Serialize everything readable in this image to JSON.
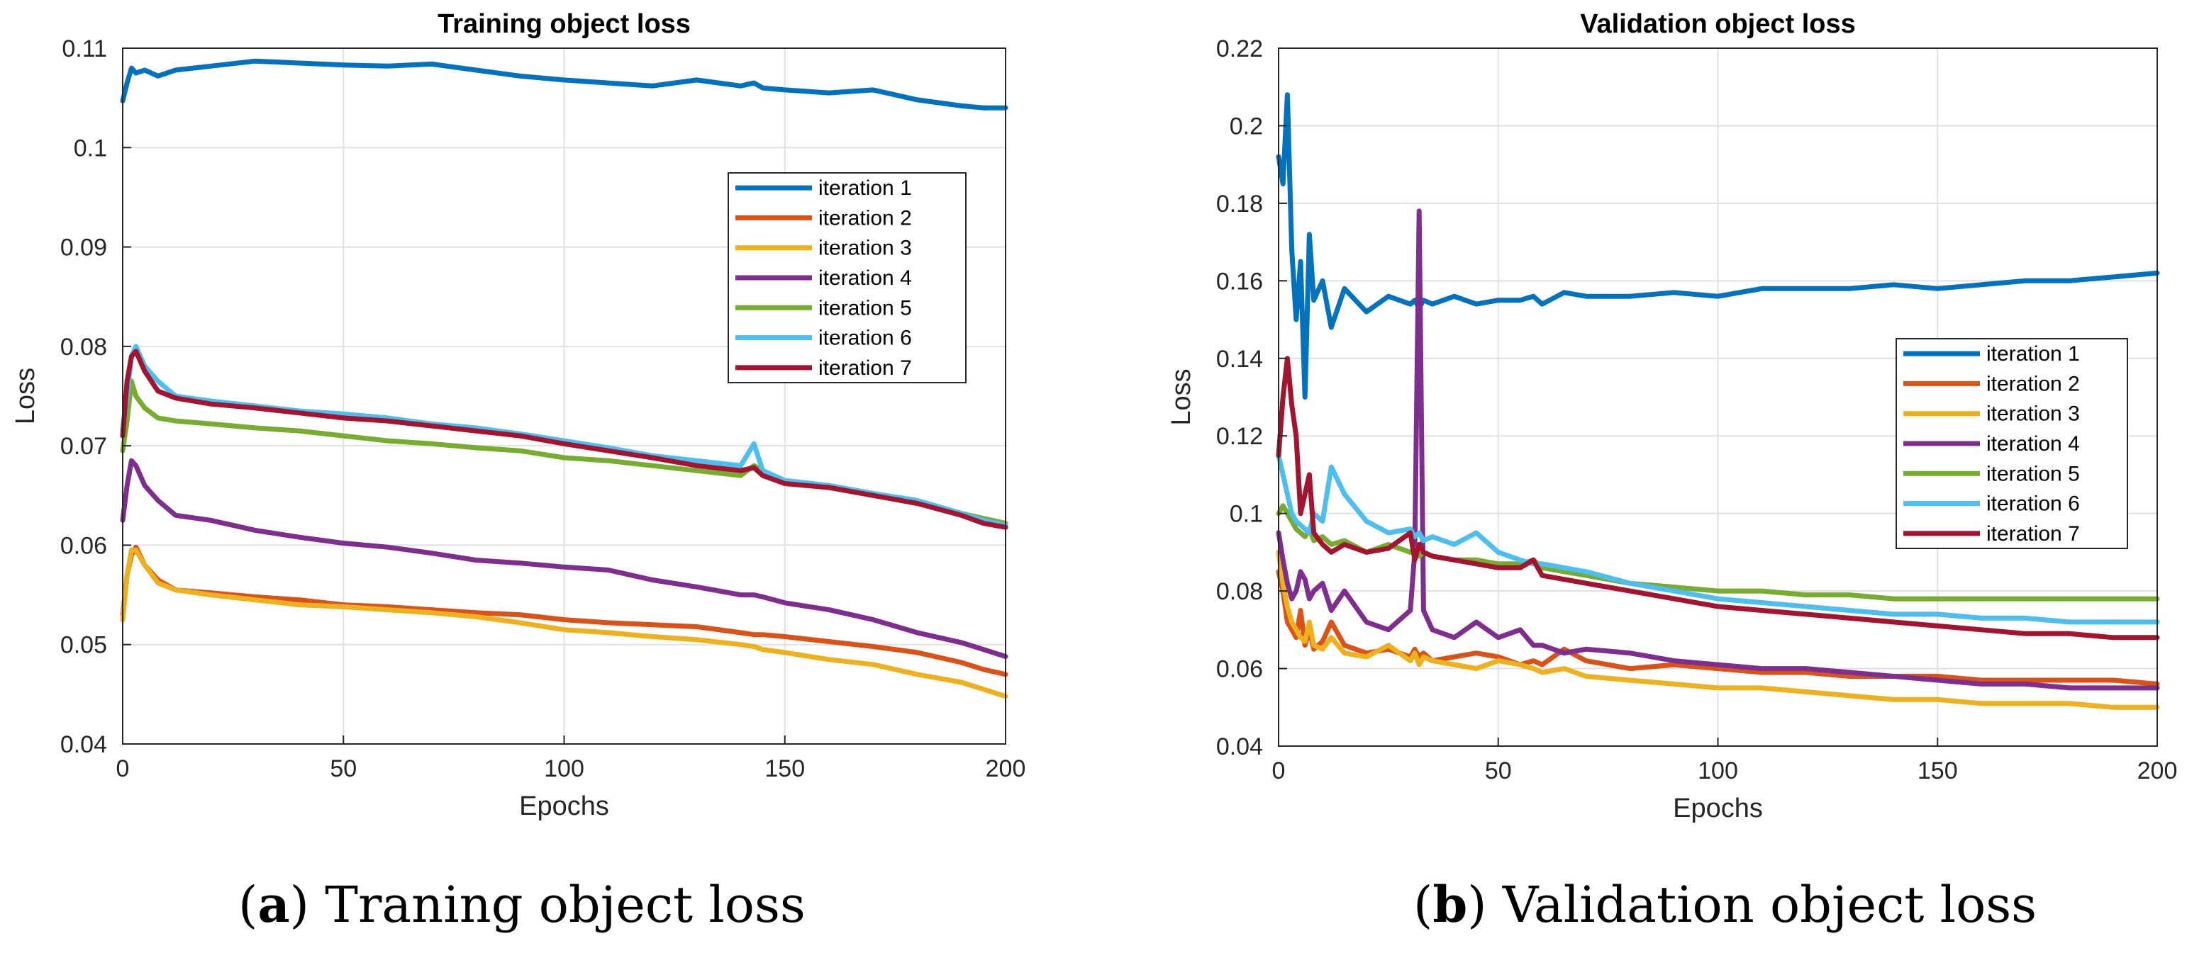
{
  "colors": {
    "series": [
      "#0072bd",
      "#d95319",
      "#edb120",
      "#7e2f8e",
      "#77ac30",
      "#4dbeee",
      "#a2142f"
    ],
    "grid": "#e1e1e1",
    "axis": "#262626"
  },
  "captions": [
    {
      "letter": "a",
      "open": "(",
      "close": ")",
      "text": "Traning object loss"
    },
    {
      "letter": "b",
      "open": "(",
      "close": ")",
      "text": "Validation object loss"
    }
  ],
  "chart_data": [
    {
      "type": "line",
      "title": "Training object loss",
      "xlabel": "Epochs",
      "ylabel": "Loss",
      "xlim": [
        0,
        200
      ],
      "ylim": [
        0.04,
        0.11
      ],
      "xticks": [
        0,
        50,
        100,
        150,
        200
      ],
      "yticks": [
        0.04,
        0.05,
        0.06,
        0.07,
        0.08,
        0.09,
        0.1,
        0.11
      ],
      "ytick_labels": [
        "0.04",
        "0.05",
        "0.06",
        "0.07",
        "0.08",
        "0.09",
        "0.1",
        "0.11"
      ],
      "grid": true,
      "legend_position": "top-right",
      "x": [
        0,
        1,
        2,
        3,
        5,
        8,
        12,
        20,
        30,
        40,
        50,
        60,
        70,
        80,
        90,
        100,
        110,
        120,
        130,
        140,
        143,
        145,
        150,
        160,
        170,
        180,
        190,
        195,
        200
      ],
      "series": [
        {
          "name": "iteration 1",
          "values": [
            0.1047,
            0.1065,
            0.108,
            0.1075,
            0.1078,
            0.1072,
            0.1078,
            0.1082,
            0.1087,
            0.1085,
            0.1083,
            0.1082,
            0.1084,
            0.1078,
            0.1072,
            0.1068,
            0.1065,
            0.1062,
            0.1068,
            0.1062,
            0.1065,
            0.106,
            0.1058,
            0.1055,
            0.1058,
            0.1048,
            0.1042,
            0.104,
            0.104
          ]
        },
        {
          "name": "iteration 2",
          "values": [
            0.053,
            0.057,
            0.059,
            0.0598,
            0.058,
            0.0565,
            0.0555,
            0.0552,
            0.0548,
            0.0545,
            0.054,
            0.0538,
            0.0535,
            0.0532,
            0.053,
            0.0525,
            0.0522,
            0.052,
            0.0518,
            0.0512,
            0.051,
            0.051,
            0.0508,
            0.0503,
            0.0498,
            0.0492,
            0.0482,
            0.0475,
            0.047
          ]
        },
        {
          "name": "iteration 3",
          "values": [
            0.0525,
            0.057,
            0.0595,
            0.0595,
            0.058,
            0.0562,
            0.0555,
            0.055,
            0.0545,
            0.054,
            0.0538,
            0.0535,
            0.0532,
            0.0528,
            0.0522,
            0.0515,
            0.0512,
            0.0508,
            0.0505,
            0.05,
            0.0498,
            0.0495,
            0.0492,
            0.0485,
            0.048,
            0.047,
            0.0462,
            0.0455,
            0.0448
          ]
        },
        {
          "name": "iteration 4",
          "values": [
            0.0625,
            0.066,
            0.0685,
            0.068,
            0.066,
            0.0645,
            0.063,
            0.0625,
            0.0615,
            0.0608,
            0.0602,
            0.0598,
            0.0592,
            0.0585,
            0.0582,
            0.0578,
            0.0575,
            0.0565,
            0.0558,
            0.055,
            0.055,
            0.0548,
            0.0542,
            0.0535,
            0.0525,
            0.0512,
            0.0502,
            0.0495,
            0.0488
          ]
        },
        {
          "name": "iteration 5",
          "values": [
            0.0695,
            0.0725,
            0.0765,
            0.075,
            0.0738,
            0.0728,
            0.0725,
            0.0722,
            0.0718,
            0.0715,
            0.071,
            0.0705,
            0.0702,
            0.0698,
            0.0695,
            0.0688,
            0.0685,
            0.068,
            0.0675,
            0.067,
            0.068,
            0.0675,
            0.0665,
            0.066,
            0.0652,
            0.0642,
            0.0632,
            0.0627,
            0.0622
          ]
        },
        {
          "name": "iteration 6",
          "values": [
            0.0715,
            0.075,
            0.079,
            0.08,
            0.078,
            0.0765,
            0.075,
            0.0745,
            0.074,
            0.0735,
            0.0732,
            0.0728,
            0.0722,
            0.0718,
            0.0712,
            0.0705,
            0.0698,
            0.069,
            0.0685,
            0.068,
            0.0702,
            0.0675,
            0.0665,
            0.066,
            0.0652,
            0.0645,
            0.0632,
            0.0625,
            0.062
          ]
        },
        {
          "name": "iteration 7",
          "values": [
            0.071,
            0.0765,
            0.079,
            0.0795,
            0.0775,
            0.0755,
            0.0748,
            0.0742,
            0.0738,
            0.0733,
            0.0728,
            0.0725,
            0.072,
            0.0715,
            0.071,
            0.0702,
            0.0695,
            0.0688,
            0.068,
            0.0675,
            0.0678,
            0.067,
            0.0662,
            0.0658,
            0.065,
            0.0642,
            0.063,
            0.0622,
            0.0618
          ]
        }
      ]
    },
    {
      "type": "line",
      "title": "Validation object loss",
      "xlabel": "Epochs",
      "ylabel": "Loss",
      "xlim": [
        0,
        200
      ],
      "ylim": [
        0.04,
        0.22
      ],
      "xticks": [
        0,
        50,
        100,
        150,
        200
      ],
      "yticks": [
        0.04,
        0.06,
        0.08,
        0.1,
        0.12,
        0.14,
        0.16,
        0.18,
        0.2,
        0.22
      ],
      "ytick_labels": [
        "0.04",
        "0.06",
        "0.08",
        "0.1",
        "0.12",
        "0.14",
        "0.16",
        "0.18",
        "0.2",
        "0.22"
      ],
      "grid": true,
      "legend_position": "right",
      "x": [
        0,
        1,
        2,
        3,
        4,
        5,
        6,
        7,
        8,
        10,
        12,
        15,
        20,
        25,
        30,
        31,
        32,
        33,
        35,
        40,
        45,
        50,
        55,
        58,
        60,
        65,
        70,
        80,
        90,
        100,
        110,
        120,
        130,
        140,
        150,
        160,
        170,
        180,
        190,
        200
      ],
      "series": [
        {
          "name": "iteration 1",
          "values": [
            0.192,
            0.185,
            0.208,
            0.168,
            0.15,
            0.165,
            0.13,
            0.172,
            0.155,
            0.16,
            0.148,
            0.158,
            0.152,
            0.156,
            0.154,
            0.155,
            0.153,
            0.155,
            0.154,
            0.156,
            0.154,
            0.155,
            0.155,
            0.156,
            0.154,
            0.157,
            0.156,
            0.156,
            0.157,
            0.156,
            0.158,
            0.158,
            0.158,
            0.159,
            0.158,
            0.159,
            0.16,
            0.16,
            0.161,
            0.162
          ]
        },
        {
          "name": "iteration 2",
          "values": [
            0.085,
            0.08,
            0.072,
            0.07,
            0.068,
            0.075,
            0.066,
            0.07,
            0.065,
            0.067,
            0.072,
            0.066,
            0.064,
            0.065,
            0.063,
            0.065,
            0.063,
            0.064,
            0.062,
            0.063,
            0.064,
            0.063,
            0.061,
            0.062,
            0.061,
            0.065,
            0.062,
            0.06,
            0.061,
            0.06,
            0.059,
            0.059,
            0.058,
            0.058,
            0.058,
            0.057,
            0.057,
            0.057,
            0.057,
            0.056
          ]
        },
        {
          "name": "iteration 3",
          "values": [
            0.09,
            0.082,
            0.076,
            0.072,
            0.07,
            0.068,
            0.067,
            0.072,
            0.066,
            0.065,
            0.068,
            0.064,
            0.063,
            0.066,
            0.062,
            0.064,
            0.061,
            0.063,
            0.062,
            0.061,
            0.06,
            0.062,
            0.061,
            0.06,
            0.059,
            0.06,
            0.058,
            0.057,
            0.056,
            0.055,
            0.055,
            0.054,
            0.053,
            0.052,
            0.052,
            0.051,
            0.051,
            0.051,
            0.05,
            0.05
          ]
        },
        {
          "name": "iteration 4",
          "values": [
            0.095,
            0.088,
            0.082,
            0.078,
            0.08,
            0.085,
            0.083,
            0.078,
            0.08,
            0.082,
            0.075,
            0.08,
            0.072,
            0.07,
            0.075,
            0.09,
            0.178,
            0.075,
            0.07,
            0.068,
            0.072,
            0.068,
            0.07,
            0.066,
            0.066,
            0.064,
            0.065,
            0.064,
            0.062,
            0.061,
            0.06,
            0.06,
            0.059,
            0.058,
            0.057,
            0.056,
            0.056,
            0.055,
            0.055,
            0.055
          ]
        },
        {
          "name": "iteration 5",
          "values": [
            0.1,
            0.102,
            0.1,
            0.098,
            0.096,
            0.095,
            0.094,
            0.096,
            0.093,
            0.094,
            0.092,
            0.093,
            0.09,
            0.092,
            0.09,
            0.091,
            0.089,
            0.09,
            0.089,
            0.088,
            0.088,
            0.087,
            0.087,
            0.088,
            0.086,
            0.085,
            0.084,
            0.082,
            0.081,
            0.08,
            0.08,
            0.079,
            0.079,
            0.078,
            0.078,
            0.078,
            0.078,
            0.078,
            0.078,
            0.078
          ]
        },
        {
          "name": "iteration 6",
          "values": [
            0.115,
            0.11,
            0.105,
            0.1,
            0.098,
            0.097,
            0.096,
            0.095,
            0.1,
            0.098,
            0.112,
            0.105,
            0.098,
            0.095,
            0.096,
            0.094,
            0.095,
            0.093,
            0.094,
            0.092,
            0.095,
            0.09,
            0.088,
            0.087,
            0.087,
            0.086,
            0.085,
            0.082,
            0.08,
            0.078,
            0.077,
            0.076,
            0.075,
            0.074,
            0.074,
            0.073,
            0.073,
            0.072,
            0.072,
            0.072
          ]
        },
        {
          "name": "iteration 7",
          "values": [
            0.115,
            0.13,
            0.14,
            0.128,
            0.12,
            0.1,
            0.105,
            0.11,
            0.095,
            0.092,
            0.09,
            0.092,
            0.09,
            0.091,
            0.095,
            0.088,
            0.092,
            0.09,
            0.089,
            0.088,
            0.087,
            0.086,
            0.086,
            0.088,
            0.084,
            0.083,
            0.082,
            0.08,
            0.078,
            0.076,
            0.075,
            0.074,
            0.073,
            0.072,
            0.071,
            0.07,
            0.069,
            0.069,
            0.068,
            0.068
          ]
        }
      ]
    }
  ]
}
